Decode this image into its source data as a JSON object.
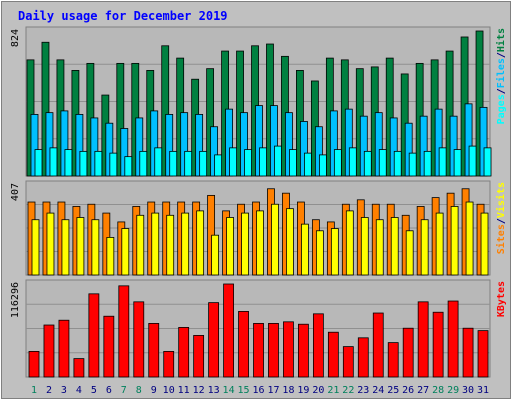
{
  "title": "Daily usage for December 2019",
  "colors": {
    "background": "#c0c0c0",
    "panel": "#b8b8b8",
    "title": "#0000ff",
    "hits": "#008040",
    "files": "#00c0ff",
    "pages": "#00ffff",
    "visits": "#ffff00",
    "sites": "#ff8000",
    "kbytes": "#ff0000",
    "weekend_day_label": "#00805c",
    "weekday_label": "#000080"
  },
  "right_labels": {
    "top": [
      "Pages",
      "/",
      "Files",
      "/",
      "Hits"
    ],
    "middle": [
      "Sites",
      "/",
      "Visits"
    ],
    "bottom": [
      "KBytes"
    ]
  },
  "y_max_labels": {
    "top": "824",
    "middle": "407",
    "bottom": "116296"
  },
  "day_labels": [
    "1",
    "2",
    "3",
    "4",
    "5",
    "6",
    "7",
    "8",
    "9",
    "10",
    "11",
    "12",
    "13",
    "14",
    "15",
    "16",
    "17",
    "18",
    "19",
    "20",
    "21",
    "22",
    "23",
    "24",
    "25",
    "26",
    "27",
    "28",
    "29",
    "30",
    "31"
  ],
  "weekend_days": [
    1,
    7,
    8,
    14,
    15,
    21,
    22,
    28,
    29
  ],
  "chart_data": [
    {
      "type": "bar",
      "title": "Pages / Files / Hits",
      "ymax_label": "824",
      "ylim": [
        0,
        824
      ],
      "categories": [
        "1",
        "2",
        "3",
        "4",
        "5",
        "6",
        "7",
        "8",
        "9",
        "10",
        "11",
        "12",
        "13",
        "14",
        "15",
        "16",
        "17",
        "18",
        "19",
        "20",
        "21",
        "22",
        "23",
        "24",
        "25",
        "26",
        "27",
        "28",
        "29",
        "30",
        "31"
      ],
      "series": [
        {
          "name": "Hits",
          "values": [
            660,
            760,
            660,
            600,
            640,
            460,
            640,
            640,
            600,
            740,
            670,
            550,
            610,
            710,
            710,
            740,
            750,
            680,
            600,
            540,
            670,
            660,
            610,
            620,
            670,
            580,
            640,
            660,
            710,
            790,
            824
          ]
        },
        {
          "name": "Files",
          "values": [
            350,
            360,
            370,
            350,
            330,
            300,
            270,
            330,
            370,
            350,
            360,
            350,
            280,
            380,
            360,
            400,
            400,
            360,
            310,
            280,
            370,
            380,
            340,
            360,
            330,
            300,
            340,
            380,
            340,
            410,
            390
          ]
        },
        {
          "name": "Pages",
          "values": [
            150,
            160,
            150,
            140,
            140,
            130,
            110,
            140,
            160,
            140,
            140,
            140,
            120,
            160,
            150,
            160,
            170,
            150,
            130,
            120,
            150,
            160,
            140,
            150,
            140,
            130,
            140,
            160,
            150,
            170,
            160
          ]
        }
      ]
    },
    {
      "type": "bar",
      "title": "Sites / Visits",
      "ymax_label": "407",
      "ylim": [
        0,
        407
      ],
      "categories": [
        "1",
        "2",
        "3",
        "4",
        "5",
        "6",
        "7",
        "8",
        "9",
        "10",
        "11",
        "12",
        "13",
        "14",
        "15",
        "16",
        "17",
        "18",
        "19",
        "20",
        "21",
        "22",
        "23",
        "24",
        "25",
        "26",
        "27",
        "28",
        "29",
        "30",
        "31"
      ],
      "series": [
        {
          "name": "Sites",
          "values": [
            330,
            330,
            330,
            310,
            320,
            280,
            240,
            310,
            330,
            330,
            330,
            330,
            360,
            290,
            320,
            330,
            390,
            370,
            330,
            250,
            240,
            320,
            340,
            320,
            320,
            270,
            310,
            350,
            370,
            390,
            320
          ]
        },
        {
          "name": "Visits",
          "values": [
            250,
            280,
            250,
            260,
            250,
            170,
            210,
            270,
            280,
            270,
            280,
            290,
            180,
            260,
            280,
            290,
            320,
            300,
            230,
            200,
            210,
            290,
            260,
            250,
            260,
            200,
            250,
            280,
            310,
            330,
            280
          ]
        }
      ]
    },
    {
      "type": "bar",
      "title": "KBytes",
      "ymax_label": "116296",
      "ylim": [
        0,
        116296
      ],
      "categories": [
        "1",
        "2",
        "3",
        "4",
        "5",
        "6",
        "7",
        "8",
        "9",
        "10",
        "11",
        "12",
        "13",
        "14",
        "15",
        "16",
        "17",
        "18",
        "19",
        "20",
        "21",
        "22",
        "23",
        "24",
        "25",
        "26",
        "27",
        "28",
        "29",
        "30",
        "31"
      ],
      "series": [
        {
          "name": "KBytes",
          "values": [
            32000,
            65000,
            71000,
            23000,
            104000,
            76000,
            114000,
            94000,
            67000,
            32000,
            62000,
            52000,
            93000,
            116296,
            82000,
            67000,
            67000,
            69000,
            66000,
            79000,
            56000,
            38000,
            49000,
            80000,
            43000,
            61000,
            94000,
            81000,
            95000,
            61000,
            58000
          ]
        }
      ]
    }
  ]
}
